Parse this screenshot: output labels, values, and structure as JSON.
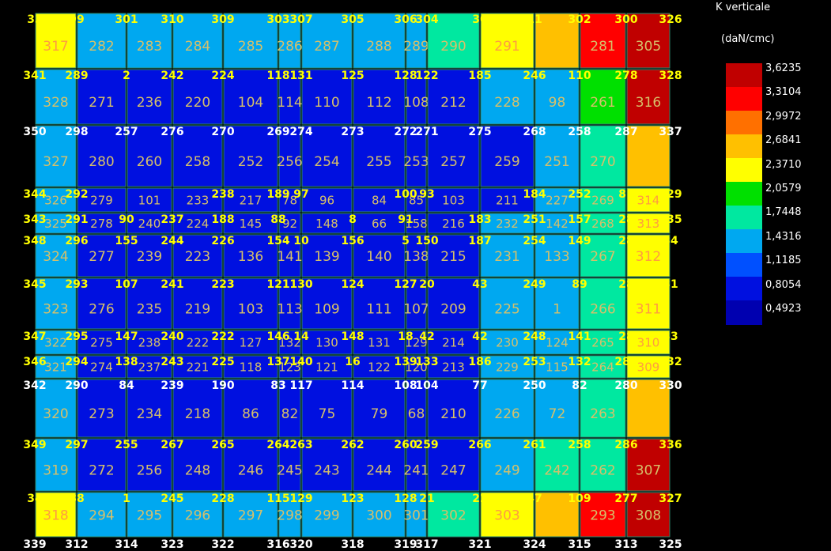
{
  "chart_data": {
    "type": "heatmap",
    "legend": {
      "title_line1": "K verticale",
      "title_line2": "(daN/cmc)",
      "values": [
        "3,6235",
        "3,3104",
        "2,9972",
        "2,6841",
        "2,3710",
        "2,0579",
        "1,7448",
        "1,4316",
        "1,1185",
        "0,8054",
        "0,4923"
      ],
      "colors": [
        "#c00000",
        "#ff0000",
        "#ff7000",
        "#ffc000",
        "#ffff00",
        "#00e000",
        "#00e8a0",
        "#00a8f0",
        "#0050ff",
        "#0010e0",
        "#0000b0"
      ]
    },
    "rows": [
      {
        "cells": [
          {
            "label": "317",
            "color": "#ffff00"
          },
          {
            "label": "282",
            "color": "#00a8f0"
          },
          {
            "label": "283",
            "color": "#00a8f0"
          },
          {
            "label": "284",
            "color": "#00a8f0"
          },
          {
            "label": "285",
            "color": "#00a8f0"
          },
          {
            "label": "286",
            "color": "#00a8f0"
          },
          {
            "label": "287",
            "color": "#00a8f0"
          },
          {
            "label": "288",
            "color": "#00a8f0"
          },
          {
            "label": "289",
            "color": "#00a8f0"
          },
          {
            "label": "290",
            "color": "#00e8a0"
          },
          {
            "label": "291",
            "color": "#ffff00"
          },
          {
            "label": "",
            "color": "#ffc000"
          },
          {
            "label": "281",
            "color": "#ff0000"
          },
          {
            "label": "305",
            "color": "#c00000"
          }
        ],
        "nodes": [
          "33",
          "99",
          "301",
          "310",
          "309",
          "303",
          "307",
          "305",
          "306",
          "304",
          "30",
          "11",
          "302",
          "300",
          "326"
        ]
      },
      {
        "cells": [
          {
            "label": "328",
            "color": "#00a8f0"
          },
          {
            "label": "271",
            "color": "#0010e0"
          },
          {
            "label": "236",
            "color": "#0010e0"
          },
          {
            "label": "220",
            "color": "#0010e0"
          },
          {
            "label": "104",
            "color": "#0010e0"
          },
          {
            "label": "114",
            "color": "#0010e0"
          },
          {
            "label": "110",
            "color": "#0010e0"
          },
          {
            "label": "112",
            "color": "#0010e0"
          },
          {
            "label": "108",
            "color": "#0010e0"
          },
          {
            "label": "212",
            "color": "#0010e0"
          },
          {
            "label": "228",
            "color": "#00a8f0"
          },
          {
            "label": "98",
            "color": "#00a8f0"
          },
          {
            "label": "261",
            "color": "#00e000"
          },
          {
            "label": "316",
            "color": "#c00000"
          }
        ],
        "nodes": [
          "341",
          "289",
          "2",
          "242",
          "224",
          "118",
          "131",
          "125",
          "128",
          "122",
          "185",
          "246",
          "110",
          "278",
          "328"
        ]
      },
      {
        "cells": [
          {
            "label": "327",
            "color": "#00a8f0"
          },
          {
            "label": "280",
            "color": "#0010e0"
          },
          {
            "label": "260",
            "color": "#0010e0"
          },
          {
            "label": "258",
            "color": "#0010e0"
          },
          {
            "label": "252",
            "color": "#0010e0"
          },
          {
            "label": "256",
            "color": "#0010e0"
          },
          {
            "label": "254",
            "color": "#0010e0"
          },
          {
            "label": "255",
            "color": "#0010e0"
          },
          {
            "label": "253",
            "color": "#0010e0"
          },
          {
            "label": "257",
            "color": "#0010e0"
          },
          {
            "label": "259",
            "color": "#0010e0"
          },
          {
            "label": "251",
            "color": "#00a8f0"
          },
          {
            "label": "270",
            "color": "#00e8a0"
          },
          {
            "label": "",
            "color": "#ffc000"
          }
        ],
        "nodes": [
          "350",
          "298",
          "257",
          "276",
          "270",
          "269",
          "274",
          "273",
          "272",
          "271",
          "275",
          "268",
          "258",
          "287",
          "337"
        ]
      },
      {
        "cells": [
          {
            "label": "326",
            "color": "#00a8f0"
          },
          {
            "label": "279",
            "color": "#0010e0"
          },
          {
            "label": "101",
            "color": "#0010e0"
          },
          {
            "label": "233",
            "color": "#0010e0"
          },
          {
            "label": "217",
            "color": "#0010e0"
          },
          {
            "label": "78",
            "color": "#0010e0"
          },
          {
            "label": "96",
            "color": "#0010e0"
          },
          {
            "label": "84",
            "color": "#0010e0"
          },
          {
            "label": "85",
            "color": "#0010e0"
          },
          {
            "label": "103",
            "color": "#0010e0"
          },
          {
            "label": "211",
            "color": "#0010e0"
          },
          {
            "label": "227",
            "color": "#00a8f0"
          },
          {
            "label": "269",
            "color": "#00e8a0"
          },
          {
            "label": "314",
            "color": "#ffff00"
          }
        ],
        "nodes": [
          "344",
          "292",
          "",
          "",
          "238",
          "189",
          "97",
          "",
          "100",
          "93",
          "",
          "184",
          "252",
          "81",
          "329"
        ]
      },
      {
        "cells": [
          {
            "label": "325",
            "color": "#00a8f0"
          },
          {
            "label": "278",
            "color": "#0010e0"
          },
          {
            "label": "240",
            "color": "#0010e0"
          },
          {
            "label": "224",
            "color": "#0010e0"
          },
          {
            "label": "145",
            "color": "#0010e0"
          },
          {
            "label": "92",
            "color": "#0010e0"
          },
          {
            "label": "148",
            "color": "#0010e0"
          },
          {
            "label": "66",
            "color": "#0010e0"
          },
          {
            "label": "158",
            "color": "#0010e0"
          },
          {
            "label": "216",
            "color": "#0010e0"
          },
          {
            "label": "232",
            "color": "#00a8f0"
          },
          {
            "label": "142",
            "color": "#00a8f0"
          },
          {
            "label": "268",
            "color": "#00e8a0"
          },
          {
            "label": "313",
            "color": "#ffff00"
          }
        ],
        "nodes": [
          "343",
          "291",
          "90",
          "237",
          "188",
          "88",
          "",
          "8",
          "91",
          "",
          "183",
          "251",
          "157",
          "28",
          "335"
        ]
      },
      {
        "cells": [
          {
            "label": "324",
            "color": "#00a8f0"
          },
          {
            "label": "277",
            "color": "#0010e0"
          },
          {
            "label": "239",
            "color": "#0010e0"
          },
          {
            "label": "223",
            "color": "#0010e0"
          },
          {
            "label": "136",
            "color": "#0010e0"
          },
          {
            "label": "141",
            "color": "#0010e0"
          },
          {
            "label": "139",
            "color": "#0010e0"
          },
          {
            "label": "140",
            "color": "#0010e0"
          },
          {
            "label": "138",
            "color": "#0010e0"
          },
          {
            "label": "215",
            "color": "#0010e0"
          },
          {
            "label": "231",
            "color": "#00a8f0"
          },
          {
            "label": "133",
            "color": "#00a8f0"
          },
          {
            "label": "267",
            "color": "#00e8a0"
          },
          {
            "label": "312",
            "color": "#ffff00"
          }
        ],
        "nodes": [
          "348",
          "296",
          "155",
          "244",
          "226",
          "154",
          "10",
          "156",
          "5",
          "150",
          "187",
          "254",
          "149",
          "28",
          "34"
        ]
      },
      {
        "cells": [
          {
            "label": "323",
            "color": "#00a8f0"
          },
          {
            "label": "276",
            "color": "#0010e0"
          },
          {
            "label": "235",
            "color": "#0010e0"
          },
          {
            "label": "219",
            "color": "#0010e0"
          },
          {
            "label": "103",
            "color": "#0010e0"
          },
          {
            "label": "113",
            "color": "#0010e0"
          },
          {
            "label": "109",
            "color": "#0010e0"
          },
          {
            "label": "111",
            "color": "#0010e0"
          },
          {
            "label": "107",
            "color": "#0010e0"
          },
          {
            "label": "209",
            "color": "#0010e0"
          },
          {
            "label": "225",
            "color": "#00a8f0"
          },
          {
            "label": "1",
            "color": "#00a8f0"
          },
          {
            "label": "266",
            "color": "#00e8a0"
          },
          {
            "label": "311",
            "color": "#ffff00"
          }
        ],
        "nodes": [
          "345",
          "293",
          "107",
          "241",
          "223",
          "121",
          "130",
          "124",
          "127",
          "20",
          "43",
          "249",
          "89",
          "28",
          "31"
        ]
      },
      {
        "cells": [
          {
            "label": "322",
            "color": "#00a8f0"
          },
          {
            "label": "275",
            "color": "#0010e0"
          },
          {
            "label": "238",
            "color": "#0010e0"
          },
          {
            "label": "222",
            "color": "#0010e0"
          },
          {
            "label": "127",
            "color": "#0010e0"
          },
          {
            "label": "132",
            "color": "#0010e0"
          },
          {
            "label": "130",
            "color": "#0010e0"
          },
          {
            "label": "131",
            "color": "#0010e0"
          },
          {
            "label": "129",
            "color": "#0010e0"
          },
          {
            "label": "214",
            "color": "#0010e0"
          },
          {
            "label": "230",
            "color": "#00a8f0"
          },
          {
            "label": "124",
            "color": "#00a8f0"
          },
          {
            "label": "265",
            "color": "#00e8a0"
          },
          {
            "label": "310",
            "color": "#ffff00"
          }
        ],
        "nodes": [
          "347",
          "295",
          "147",
          "240",
          "222",
          "146",
          "14",
          "148",
          "18",
          "42",
          "42",
          "248",
          "141",
          "28",
          "33"
        ]
      },
      {
        "cells": [
          {
            "label": "321",
            "color": "#00a8f0"
          },
          {
            "label": "274",
            "color": "#0010e0"
          },
          {
            "label": "237",
            "color": "#0010e0"
          },
          {
            "label": "221",
            "color": "#0010e0"
          },
          {
            "label": "118",
            "color": "#0010e0"
          },
          {
            "label": "123",
            "color": "#0010e0"
          },
          {
            "label": "121",
            "color": "#0010e0"
          },
          {
            "label": "122",
            "color": "#0010e0"
          },
          {
            "label": "120",
            "color": "#0010e0"
          },
          {
            "label": "213",
            "color": "#0010e0"
          },
          {
            "label": "229",
            "color": "#00a8f0"
          },
          {
            "label": "115",
            "color": "#00a8f0"
          },
          {
            "label": "264",
            "color": "#00e8a0"
          },
          {
            "label": "309",
            "color": "#ffff00"
          }
        ],
        "nodes": [
          "346",
          "294",
          "138",
          "243",
          "225",
          "137",
          "140",
          "16",
          "139",
          "133",
          "186",
          "253",
          "132",
          "282",
          "332"
        ]
      },
      {
        "cells": [
          {
            "label": "320",
            "color": "#00a8f0"
          },
          {
            "label": "273",
            "color": "#0010e0"
          },
          {
            "label": "234",
            "color": "#0010e0"
          },
          {
            "label": "218",
            "color": "#0010e0"
          },
          {
            "label": "86",
            "color": "#0010e0"
          },
          {
            "label": "82",
            "color": "#0010e0"
          },
          {
            "label": "75",
            "color": "#0010e0"
          },
          {
            "label": "79",
            "color": "#0010e0"
          },
          {
            "label": "68",
            "color": "#0010e0"
          },
          {
            "label": "210",
            "color": "#0010e0"
          },
          {
            "label": "226",
            "color": "#00a8f0"
          },
          {
            "label": "72",
            "color": "#00a8f0"
          },
          {
            "label": "263",
            "color": "#00e8a0"
          },
          {
            "label": "",
            "color": "#ffc000"
          }
        ],
        "nodes": [
          "342",
          "290",
          "84",
          "239",
          "190",
          "83",
          "117",
          "114",
          "108",
          "104",
          "77",
          "250",
          "82",
          "280",
          "330"
        ]
      },
      {
        "cells": [
          {
            "label": "319",
            "color": "#00a8f0"
          },
          {
            "label": "272",
            "color": "#0010e0"
          },
          {
            "label": "256",
            "color": "#0010e0"
          },
          {
            "label": "248",
            "color": "#0010e0"
          },
          {
            "label": "246",
            "color": "#0010e0"
          },
          {
            "label": "245",
            "color": "#0010e0"
          },
          {
            "label": "243",
            "color": "#0010e0"
          },
          {
            "label": "244",
            "color": "#0010e0"
          },
          {
            "label": "241",
            "color": "#0010e0"
          },
          {
            "label": "247",
            "color": "#0010e0"
          },
          {
            "label": "249",
            "color": "#00a8f0"
          },
          {
            "label": "242",
            "color": "#00e8a0"
          },
          {
            "label": "262",
            "color": "#00e8a0"
          },
          {
            "label": "307",
            "color": "#c00000"
          }
        ],
        "nodes": [
          "349",
          "297",
          "255",
          "267",
          "265",
          "264",
          "263",
          "262",
          "260",
          "259",
          "266",
          "261",
          "258",
          "286",
          "336"
        ]
      },
      {
        "cells": [
          {
            "label": "318",
            "color": "#ffff00"
          },
          {
            "label": "294",
            "color": "#00a8f0"
          },
          {
            "label": "295",
            "color": "#00a8f0"
          },
          {
            "label": "296",
            "color": "#00a8f0"
          },
          {
            "label": "297",
            "color": "#00a8f0"
          },
          {
            "label": "298",
            "color": "#00a8f0"
          },
          {
            "label": "299",
            "color": "#00a8f0"
          },
          {
            "label": "300",
            "color": "#00a8f0"
          },
          {
            "label": "301",
            "color": "#00a8f0"
          },
          {
            "label": "302",
            "color": "#00e8a0"
          },
          {
            "label": "303",
            "color": "#ffff00"
          },
          {
            "label": "",
            "color": "#ffc000"
          },
          {
            "label": "293",
            "color": "#ff0000"
          },
          {
            "label": "308",
            "color": "#c00000"
          }
        ],
        "nodes": [
          "34",
          "88",
          "1",
          "245",
          "228",
          "115",
          "129",
          "123",
          "128",
          "21",
          "22",
          "47",
          "109",
          "277",
          "327"
        ]
      }
    ],
    "bottom_nodes": [
      "339",
      "312",
      "314",
      "323",
      "322",
      "316",
      "320",
      "318",
      "319",
      "317",
      "321",
      "324",
      "315",
      "313",
      "325"
    ]
  }
}
